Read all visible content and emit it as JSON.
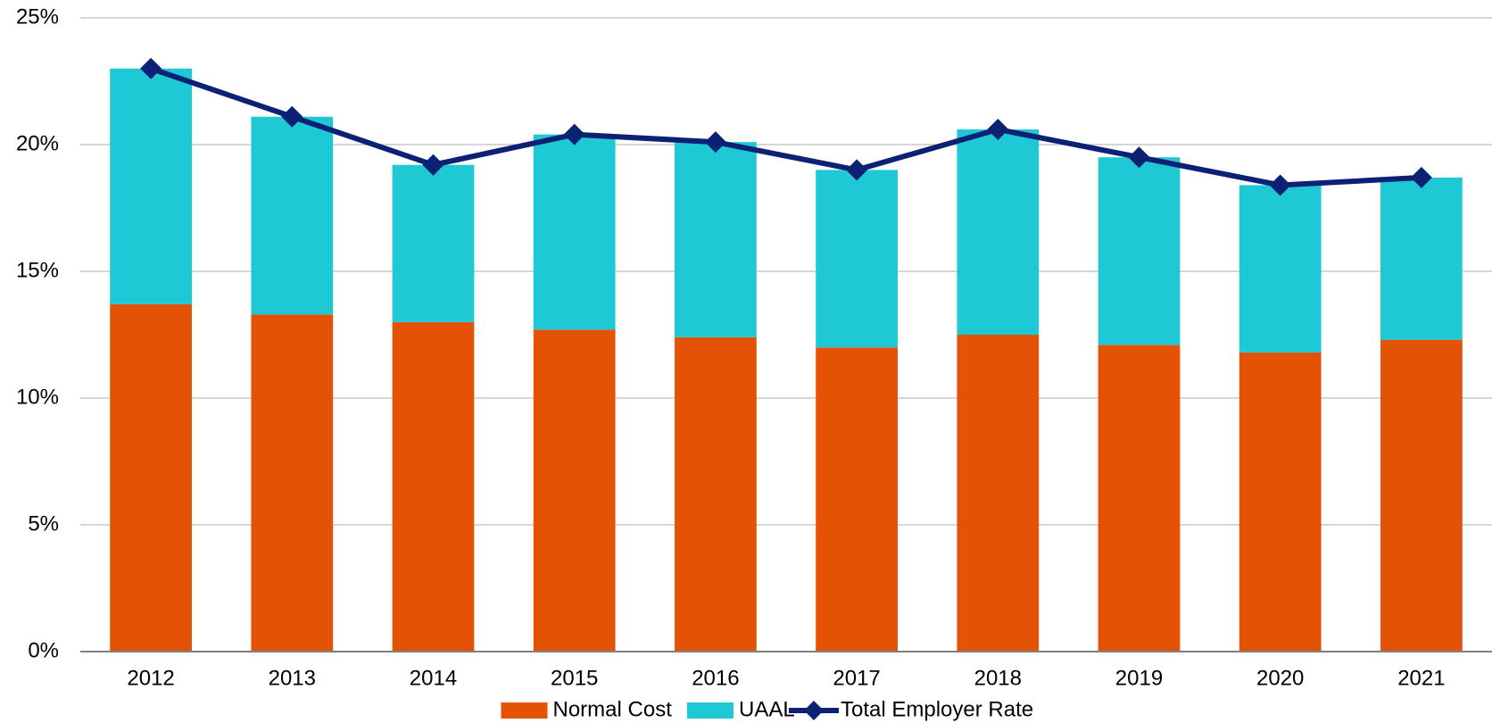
{
  "chart_data": {
    "type": "stacked-bar-line",
    "categories": [
      "2012",
      "2013",
      "2014",
      "2015",
      "2016",
      "2017",
      "2018",
      "2019",
      "2020",
      "2021"
    ],
    "series": [
      {
        "name": "Normal Cost",
        "type": "bar",
        "color": "#e35205",
        "values": [
          13.7,
          13.3,
          13.0,
          12.7,
          12.4,
          12.0,
          12.5,
          12.1,
          11.8,
          12.3
        ]
      },
      {
        "name": "UAAL",
        "type": "bar",
        "color": "#1ec8d4",
        "values": [
          9.3,
          7.8,
          6.2,
          7.7,
          7.7,
          7.0,
          8.1,
          7.4,
          6.6,
          6.4
        ]
      },
      {
        "name": "Total Employer Rate",
        "type": "line",
        "color": "#0c2174",
        "values": [
          23.0,
          21.1,
          19.2,
          20.4,
          20.1,
          19.0,
          20.6,
          19.5,
          18.4,
          18.7
        ]
      }
    ],
    "ylim": [
      0,
      25
    ],
    "yticks": [
      {
        "value": 0,
        "label": "0%"
      },
      {
        "value": 5,
        "label": "5%"
      },
      {
        "value": 10,
        "label": "10%"
      },
      {
        "value": 15,
        "label": "15%"
      },
      {
        "value": 20,
        "label": "20%"
      },
      {
        "value": 25,
        "label": "25%"
      }
    ],
    "grid": true,
    "legend": "bottom"
  }
}
